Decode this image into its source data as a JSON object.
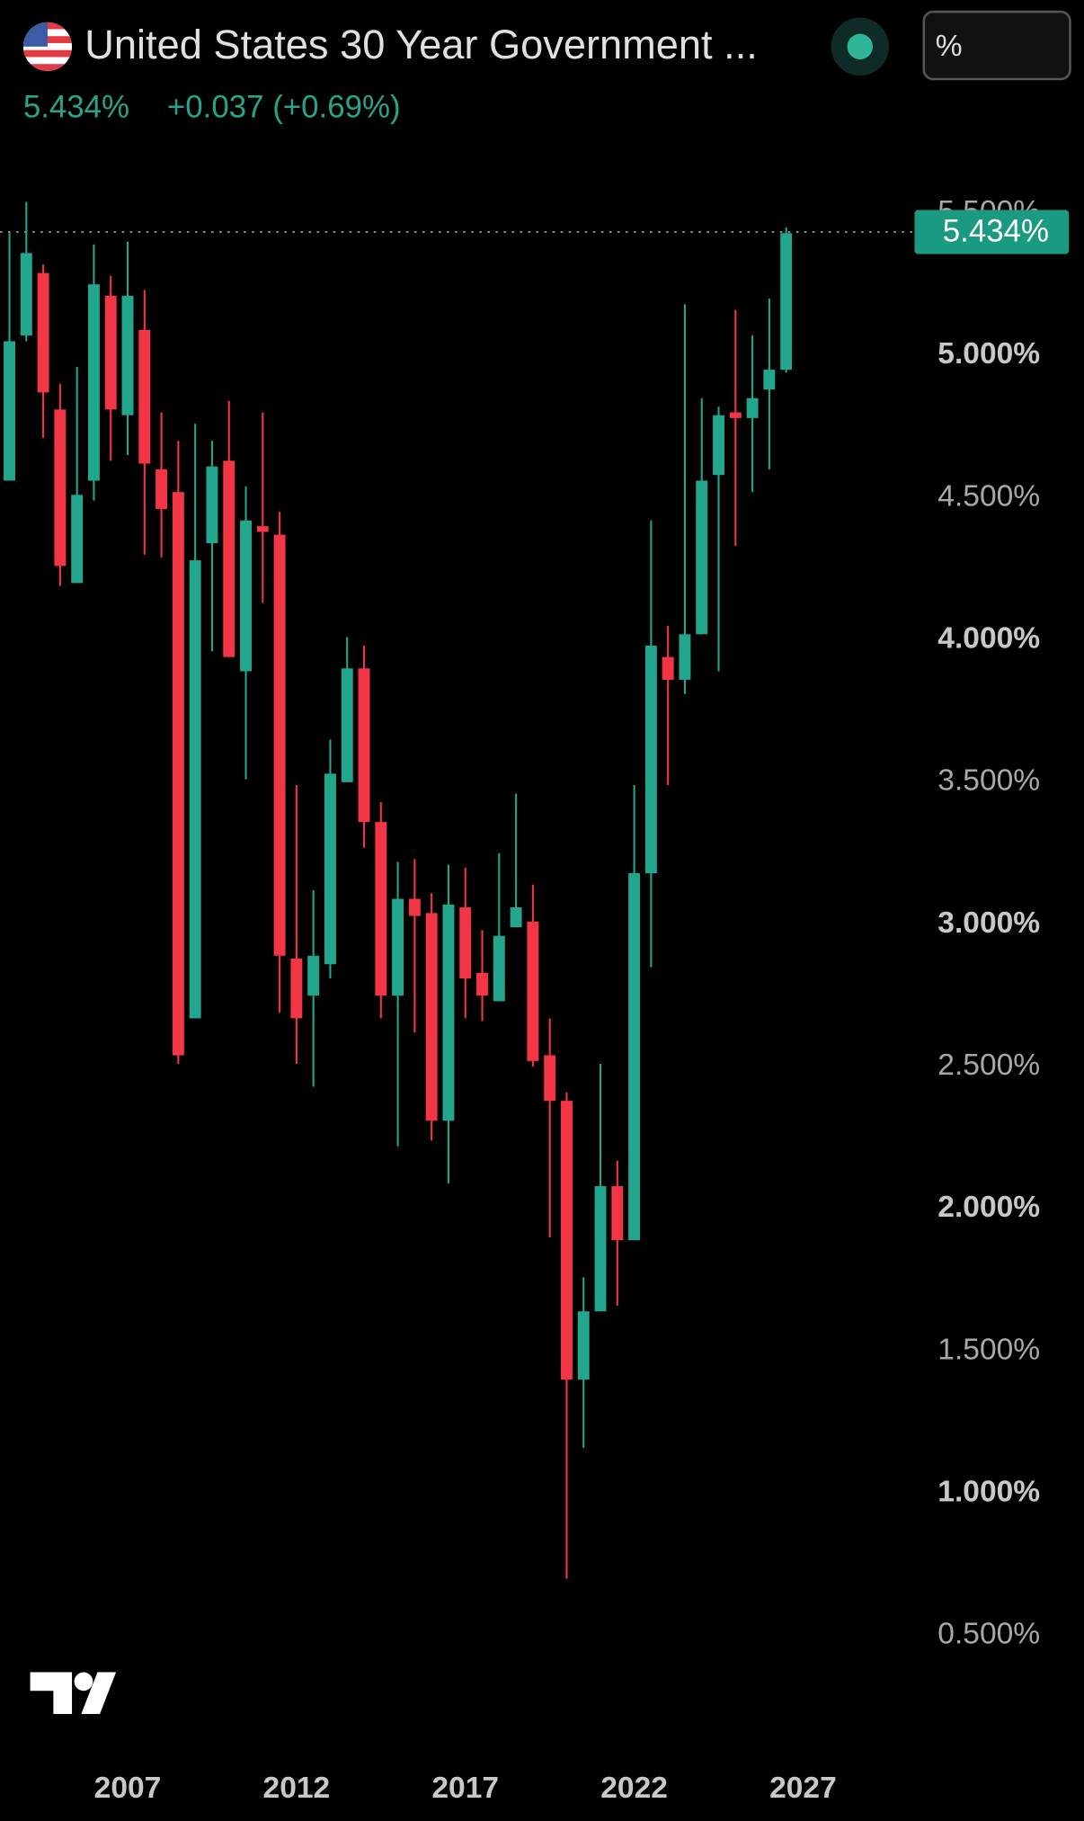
{
  "header": {
    "title": "United States 30 Year Government ...",
    "price": "5.434%",
    "change": "+0.037 (+0.69%)",
    "unit_button": "%"
  },
  "chart_data": {
    "type": "candlestick",
    "x": [
      2003.5,
      2004,
      2004.5,
      2005,
      2005.5,
      2006,
      2006.5,
      2007,
      2007.5,
      2008,
      2008.5,
      2009,
      2009.5,
      2010,
      2010.5,
      2011,
      2011.5,
      2012,
      2012.5,
      2013,
      2013.5,
      2014,
      2014.5,
      2015,
      2015.5,
      2016,
      2016.5,
      2017,
      2017.5,
      2018,
      2018.5,
      2019,
      2019.5,
      2020,
      2020.5,
      2021,
      2021.5,
      2022,
      2022.5,
      2023,
      2023.5,
      2024,
      2024.5,
      2025,
      2025.5,
      2026,
      2026.5
    ],
    "open": [
      4.56,
      5.07,
      5.29,
      4.81,
      4.2,
      4.56,
      5.21,
      4.79,
      5.09,
      4.6,
      4.52,
      2.67,
      4.34,
      4.63,
      3.89,
      4.4,
      4.37,
      2.88,
      2.75,
      2.86,
      3.5,
      3.9,
      3.36,
      2.75,
      3.09,
      3.04,
      2.31,
      3.06,
      2.83,
      2.73,
      2.99,
      3.01,
      2.54,
      2.38,
      1.4,
      1.64,
      2.08,
      1.89,
      3.18,
      3.94,
      3.86,
      4.02,
      4.58,
      4.8,
      4.78,
      4.88,
      4.95
    ],
    "high": [
      5.43,
      5.54,
      5.32,
      4.9,
      4.96,
      5.39,
      5.28,
      5.4,
      5.23,
      4.8,
      4.7,
      4.76,
      4.7,
      4.84,
      4.54,
      4.8,
      4.45,
      3.49,
      3.12,
      3.65,
      4.01,
      3.98,
      3.43,
      3.22,
      3.23,
      3.11,
      3.21,
      3.2,
      2.98,
      3.25,
      3.46,
      3.14,
      2.67,
      2.41,
      1.76,
      2.51,
      2.17,
      3.49,
      4.42,
      4.05,
      5.18,
      4.85,
      4.82,
      5.16,
      5.07,
      5.2,
      5.45
    ],
    "low": [
      4.56,
      5.05,
      4.71,
      4.19,
      4.2,
      4.49,
      4.63,
      4.65,
      4.3,
      4.29,
      2.51,
      2.67,
      3.96,
      3.94,
      3.51,
      4.13,
      2.69,
      2.51,
      2.43,
      2.81,
      3.5,
      3.27,
      2.67,
      2.22,
      2.62,
      2.24,
      2.09,
      2.67,
      2.66,
      2.73,
      2.99,
      2.5,
      1.9,
      0.7,
      1.16,
      1.64,
      1.66,
      1.89,
      2.85,
      3.49,
      3.81,
      4.02,
      3.89,
      4.33,
      4.52,
      4.6,
      4.94
    ],
    "close": [
      5.05,
      5.36,
      4.87,
      4.26,
      4.51,
      5.25,
      4.81,
      5.21,
      4.62,
      4.46,
      2.54,
      4.28,
      4.61,
      3.94,
      4.42,
      4.38,
      2.89,
      2.67,
      2.89,
      3.53,
      3.9,
      3.36,
      2.75,
      3.09,
      3.03,
      2.31,
      3.07,
      2.81,
      2.75,
      2.96,
      3.06,
      2.52,
      2.38,
      1.4,
      1.64,
      2.08,
      1.89,
      3.18,
      3.98,
      3.86,
      4.02,
      4.56,
      4.79,
      4.78,
      4.85,
      4.95,
      5.43
    ],
    "up_color": "#22a68e",
    "down_color": "#f23645",
    "xlim": [
      2003.22,
      2029.7
    ],
    "xticks": [
      2007,
      2012,
      2017,
      2022,
      2027
    ],
    "ylim": [
      0.25,
      5.6
    ],
    "yticks": [
      {
        "value": 0.5,
        "label": "0.500%"
      },
      {
        "value": 1,
        "label": "1.000%"
      },
      {
        "value": 1.5,
        "label": "1.500%"
      },
      {
        "value": 2,
        "label": "2.000%"
      },
      {
        "value": 2.5,
        "label": "2.500%"
      },
      {
        "value": 3,
        "label": "3.000%"
      },
      {
        "value": 3.5,
        "label": "3.500%"
      },
      {
        "value": 4,
        "label": "4.000%"
      },
      {
        "value": 4.5,
        "label": "4.500%"
      },
      {
        "value": 5,
        "label": "5.000%"
      },
      {
        "value": 5.5,
        "label": "5.500%"
      }
    ],
    "price_line": {
      "value": 5.434,
      "label": "5.434%"
    }
  }
}
